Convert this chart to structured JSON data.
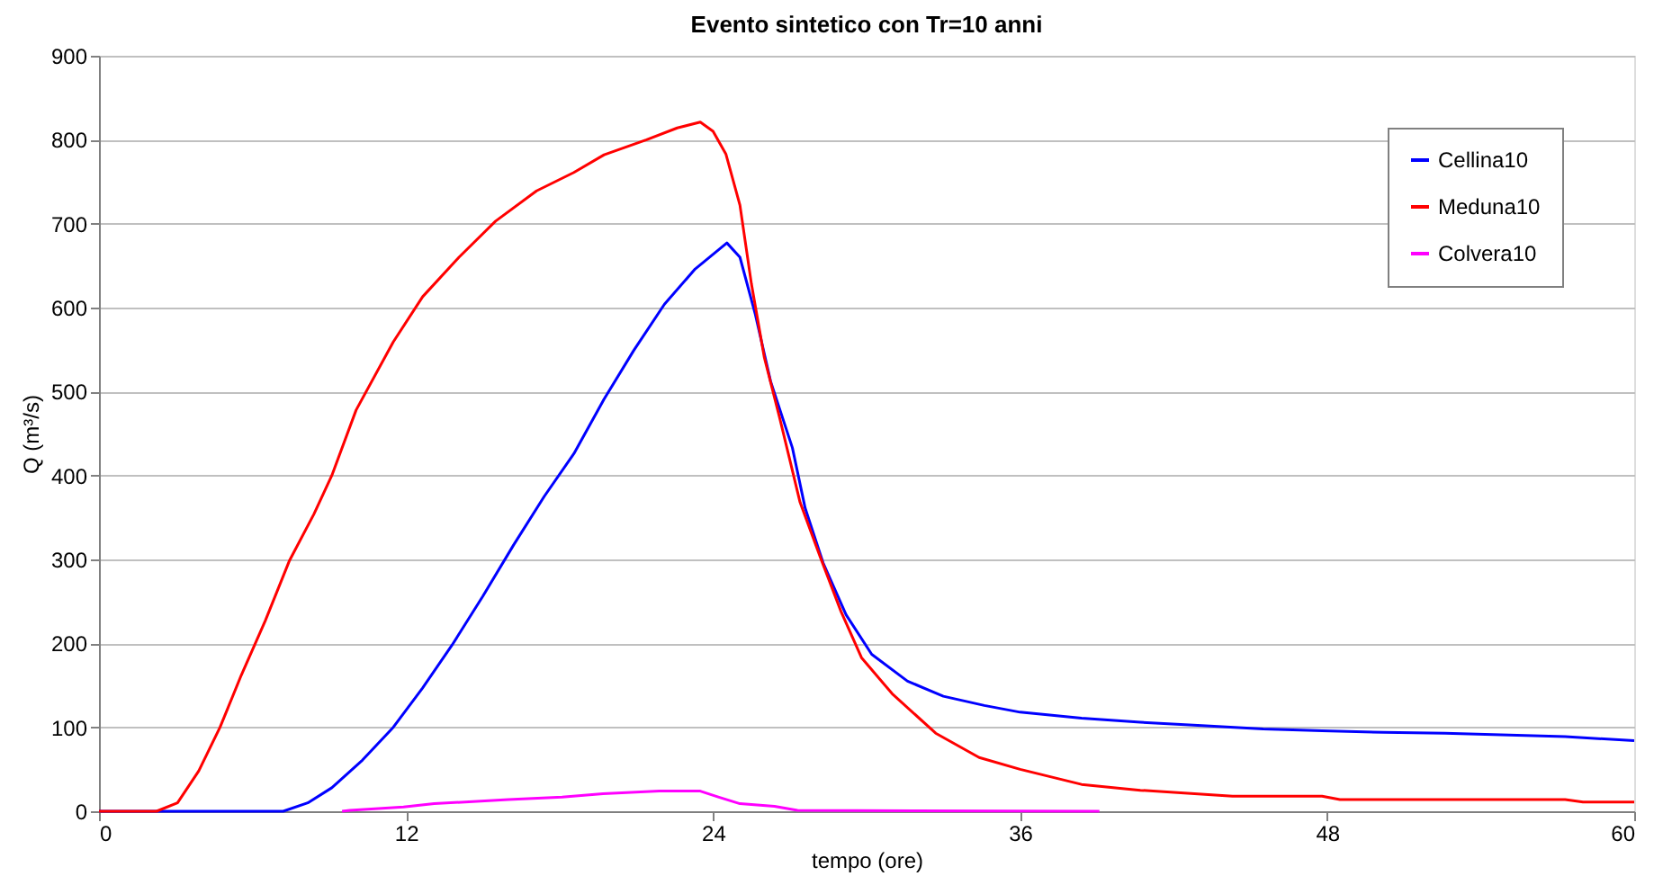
{
  "chart_data": {
    "type": "line",
    "title": "Evento sintetico con Tr=10 anni",
    "xlabel": "tempo (ore)",
    "ylabel": "Q (m³/s)",
    "xlim": [
      0,
      60
    ],
    "xticks": [
      0,
      12,
      24,
      36,
      48,
      60
    ],
    "ylim": [
      0,
      900
    ],
    "yticks": [
      0,
      100,
      200,
      300,
      400,
      500,
      600,
      700,
      800,
      900
    ],
    "grid": "y",
    "legend": "top right",
    "marker": "none",
    "line_style": "solid",
    "series": [
      {
        "name": "Cellina10",
        "color": "#0000ff",
        "x": [
          0,
          7.2,
          8.16,
          9.1,
          10.3,
          11.5,
          12.65,
          13.8,
          15,
          16.2,
          17.4,
          18.56,
          19.74,
          20.9,
          22.1,
          23.3,
          24.54,
          25.05,
          25.65,
          26.25,
          27.1,
          27.6,
          28.3,
          29.2,
          30.2,
          31.6,
          33,
          34.6,
          36,
          38.4,
          40.7,
          43.1,
          45.5,
          47.8,
          50.2,
          52.6,
          57.3,
          60
        ],
        "values": [
          0,
          0,
          10,
          28,
          61,
          100,
          147,
          198,
          256,
          317,
          375,
          426,
          491,
          549,
          604,
          646,
          677,
          660,
          592,
          512,
          433,
          361,
          296,
          234,
          187,
          155,
          137,
          126,
          118,
          111,
          106,
          102,
          98,
          96,
          94,
          93,
          89,
          84
        ]
      },
      {
        "name": "Meduna10",
        "color": "#ff0000",
        "x": [
          0,
          2.25,
          3.07,
          3.9,
          4.73,
          5.56,
          6.5,
          7.45,
          8.4,
          9.1,
          10.05,
          11.5,
          12.65,
          14.07,
          15.5,
          17.1,
          18.56,
          19.74,
          21.4,
          22.6,
          23.5,
          24,
          24.5,
          25.05,
          25.5,
          26,
          26.6,
          27.4,
          28.2,
          29,
          29.8,
          31,
          32.7,
          34.4,
          36,
          38.4,
          40.7,
          44.3,
          47.8,
          48.5,
          57.3,
          58,
          60
        ],
        "values": [
          0,
          0,
          10,
          48,
          100,
          162,
          227,
          299,
          354,
          400,
          478,
          559,
          613,
          660,
          703,
          739,
          761,
          782,
          800,
          814,
          821,
          810,
          783,
          722,
          628,
          541,
          469,
          368,
          302,
          238,
          183,
          140,
          93,
          64,
          50,
          32,
          25,
          18,
          18,
          14,
          14,
          11,
          11
        ]
      },
      {
        "name": "Colvera10",
        "color": "#ff00ff",
        "x": [
          9.5,
          9.8,
          11.9,
          13.1,
          16,
          18.1,
          19.7,
          21.9,
          23.5,
          24.2,
          25.05,
          26.4,
          27.3,
          39.1
        ],
        "values": [
          0,
          1,
          5,
          9,
          14,
          17,
          21,
          24,
          24,
          17,
          9,
          6,
          1,
          0
        ]
      }
    ]
  }
}
